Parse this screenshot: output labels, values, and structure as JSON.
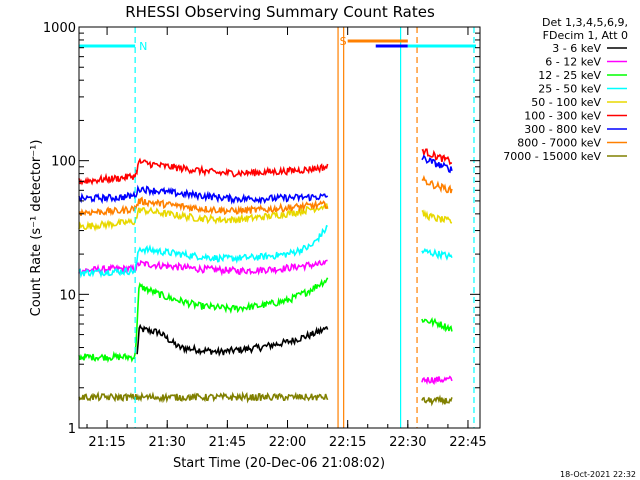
{
  "chart_data": {
    "type": "line",
    "title": "RHESSI Observing Summary Count Rates",
    "xlabel": "Start Time (20-Dec-06 21:08:02)",
    "ylabel": "Count Rate (s⁻¹ detector⁻¹)",
    "x_unit": "minutes after 21:08",
    "xlim": [
      0,
      100
    ],
    "ylim": [
      1,
      1000
    ],
    "yscale": "log",
    "x_ticks": [
      {
        "label": "21:15",
        "value": 7
      },
      {
        "label": "21:30",
        "value": 22
      },
      {
        "label": "21:45",
        "value": 37
      },
      {
        "label": "22:00",
        "value": 52
      },
      {
        "label": "22:15",
        "value": 67
      },
      {
        "label": "22:30",
        "value": 82
      },
      {
        "label": "22:45",
        "value": 97
      }
    ],
    "y_ticks": [
      {
        "label": "1000",
        "value": 1000
      },
      {
        "label": "100",
        "value": 100
      },
      {
        "label": "10",
        "value": 10
      },
      {
        "label": "1",
        "value": 1
      }
    ],
    "legend_header": [
      "Det 1,3,4,5,6,9,",
      "FDecim 1, Att 0"
    ],
    "series": [
      {
        "name": "3 - 6 keV",
        "color": "#000000",
        "segments": [
          [
            [
              14.5,
              3.5
            ],
            [
              15,
              5.5
            ],
            [
              20,
              5.2
            ],
            [
              25,
              4.0
            ],
            [
              35,
              3.7
            ],
            [
              45,
              4.0
            ],
            [
              52,
              4.4
            ],
            [
              58,
              5.0
            ],
            [
              62,
              5.6
            ]
          ]
        ]
      },
      {
        "name": "6 - 12 keV",
        "color": "#ff00ff",
        "segments": [
          [
            [
              0,
              15
            ],
            [
              8,
              15.5
            ],
            [
              14,
              15.5
            ],
            [
              15,
              17
            ],
            [
              20,
              16.5
            ],
            [
              30,
              15.5
            ],
            [
              40,
              15
            ],
            [
              50,
              15.5
            ],
            [
              57,
              16.5
            ],
            [
              62,
              17
            ]
          ],
          [
            [
              85.5,
              2.3
            ],
            [
              93,
              2.3
            ]
          ]
        ]
      },
      {
        "name": "12 - 25 keV",
        "color": "#00ff00",
        "segments": [
          [
            [
              0,
              3.4
            ],
            [
              14,
              3.4
            ],
            [
              15,
              11.5
            ],
            [
              22,
              9.5
            ],
            [
              30,
              8.2
            ],
            [
              38,
              7.8
            ],
            [
              45,
              8.2
            ],
            [
              52,
              9.0
            ],
            [
              57,
              10.5
            ],
            [
              62,
              13
            ]
          ],
          [
            [
              85.5,
              6.5
            ],
            [
              90,
              6.0
            ],
            [
              93,
              5.5
            ]
          ]
        ]
      },
      {
        "name": "25 - 50 keV",
        "color": "#00ffff",
        "segments": [
          [
            [
              0,
              14.5
            ],
            [
              14,
              15
            ],
            [
              15,
              22
            ],
            [
              20,
              21
            ],
            [
              28,
              19.5
            ],
            [
              36,
              18.5
            ],
            [
              45,
              19
            ],
            [
              52,
              20
            ],
            [
              58,
              23
            ],
            [
              62,
              32
            ]
          ],
          [
            [
              85.5,
              21
            ],
            [
              90,
              20
            ],
            [
              93,
              19
            ]
          ]
        ]
      },
      {
        "name": "50 - 100 keV",
        "color": "#e8d800",
        "segments": [
          [
            [
              0,
              32
            ],
            [
              10,
              34
            ],
            [
              14,
              35
            ],
            [
              15,
              43
            ],
            [
              22,
              40
            ],
            [
              30,
              37
            ],
            [
              38,
              36
            ],
            [
              46,
              38
            ],
            [
              54,
              41
            ],
            [
              60,
              45
            ],
            [
              62,
              46
            ]
          ],
          [
            [
              85.5,
              40
            ],
            [
              89,
              37
            ],
            [
              93,
              35
            ]
          ]
        ]
      },
      {
        "name": "100 - 300 keV",
        "color": "#ff0000",
        "segments": [
          [
            [
              0,
              70
            ],
            [
              10,
              74
            ],
            [
              14,
              77
            ],
            [
              15,
              98
            ],
            [
              20,
              92
            ],
            [
              28,
              86
            ],
            [
              35,
              81
            ],
            [
              42,
              81
            ],
            [
              50,
              83
            ],
            [
              57,
              86
            ],
            [
              62,
              90
            ]
          ],
          [
            [
              85.5,
              120
            ],
            [
              89,
              108
            ],
            [
              93,
              98
            ]
          ]
        ]
      },
      {
        "name": "300 - 800 keV",
        "color": "#0000ff",
        "segments": [
          [
            [
              0,
              52
            ],
            [
              10,
              53
            ],
            [
              14,
              55
            ],
            [
              15,
              62
            ],
            [
              22,
              58
            ],
            [
              30,
              55
            ],
            [
              38,
              52
            ],
            [
              46,
              52
            ],
            [
              54,
              53
            ],
            [
              62,
              54
            ]
          ],
          [
            [
              85.5,
              105
            ],
            [
              89,
              95
            ],
            [
              93,
              86
            ]
          ]
        ]
      },
      {
        "name": "800 - 7000 keV",
        "color": "#ff8000",
        "segments": [
          [
            [
              0,
              41
            ],
            [
              10,
              42
            ],
            [
              14,
              44
            ],
            [
              15,
              50
            ],
            [
              22,
              47
            ],
            [
              30,
              44
            ],
            [
              38,
              42
            ],
            [
              46,
              43
            ],
            [
              54,
              45
            ],
            [
              62,
              47
            ]
          ],
          [
            [
              85.5,
              72
            ],
            [
              89,
              65
            ],
            [
              93,
              60
            ]
          ]
        ]
      },
      {
        "name": "7000 - 15000 keV",
        "color": "#808000",
        "segments": [
          [
            [
              0,
              1.7
            ],
            [
              62,
              1.7
            ]
          ],
          [
            [
              85.5,
              1.6
            ],
            [
              93,
              1.6
            ]
          ]
        ]
      }
    ],
    "flag_bars": [
      {
        "label": "N",
        "color": "#00ffff",
        "x_start": 0,
        "x_end": 14
      },
      {
        "label": "S",
        "color": "#ff8000",
        "x_start": 67,
        "x_end": 82
      },
      {
        "label": "",
        "color": "#0000ff",
        "x_start": 74,
        "x_end": 82
      },
      {
        "label": "",
        "color": "#00ffff",
        "x_start": 82,
        "x_end": 99
      }
    ],
    "vlines": [
      {
        "x": 14,
        "color": "#00ffff",
        "style": "dashed"
      },
      {
        "x": 64.6,
        "color": "#ff8000",
        "style": "solid"
      },
      {
        "x": 66.0,
        "color": "#ff8000",
        "style": "solid"
      },
      {
        "x": 80.2,
        "color": "#00ffff",
        "style": "solid"
      },
      {
        "x": 84.3,
        "color": "#ff8000",
        "style": "dashed"
      },
      {
        "x": 98.5,
        "color": "#00ffff",
        "style": "dashed"
      }
    ],
    "timestamp": "18-Oct-2021 22:32"
  }
}
